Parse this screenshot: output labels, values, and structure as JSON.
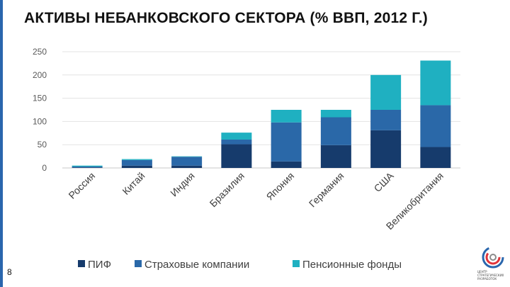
{
  "title": "АКТИВЫ НЕБАНКОВСКОГО СЕКТОРА (% ВВП, 2012 Г.)",
  "page_number": "8",
  "logo": {
    "lines": [
      "ЦЕНТР",
      "СТРАТЕГИЧЕСКИХ",
      "РАЗРАБОТОК"
    ]
  },
  "colors": {
    "pif": "#163b6c",
    "insurance": "#2a68a8",
    "pension": "#1fb0c1",
    "accent": "#2a66ad"
  },
  "chart_data": {
    "type": "bar",
    "stacked": true,
    "title": "АКТИВЫ НЕБАНКОВСКОГО СЕКТОРА (% ВВП, 2012 Г.)",
    "categories": [
      "Россия",
      "Китай",
      "Индия",
      "Бразилия",
      "Япония",
      "Германия",
      "США",
      "Великобритания"
    ],
    "series": [
      {
        "name": "ПИФ",
        "color": "#163b6c",
        "values": [
          1,
          5,
          5,
          51,
          14,
          49,
          81,
          45
        ]
      },
      {
        "name": "Страховые компании",
        "color": "#2a68a8",
        "values": [
          2,
          12,
          19,
          10,
          84,
          60,
          44,
          90
        ]
      },
      {
        "name": "Пенсионные фонды",
        "color": "#1fb0c1",
        "values": [
          2,
          2,
          1,
          15,
          27,
          16,
          75,
          96
        ]
      }
    ],
    "ylim": [
      0,
      250
    ],
    "yticks": [
      0,
      50,
      100,
      150,
      200,
      250
    ],
    "grid": true,
    "legend": "bottom"
  }
}
